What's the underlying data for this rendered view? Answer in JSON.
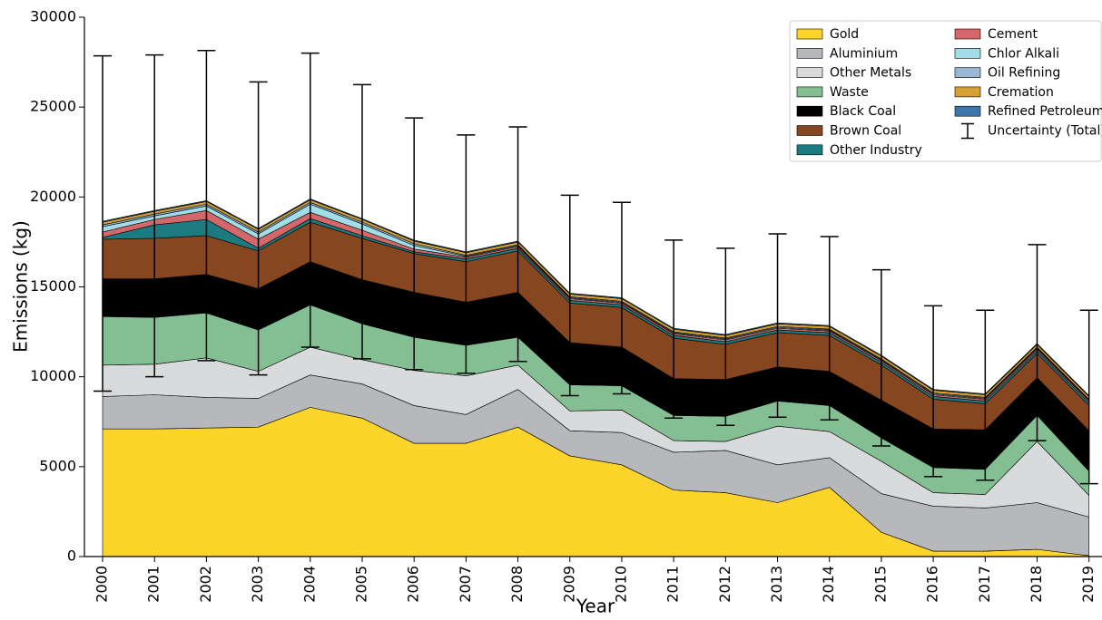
{
  "chart_data": {
    "type": "stacked_area",
    "x_label": "Year",
    "y_label": "Emissions (kg)",
    "x": [
      2000,
      2001,
      2002,
      2003,
      2004,
      2005,
      2006,
      2007,
      2008,
      2009,
      2010,
      2011,
      2012,
      2013,
      2014,
      2015,
      2016,
      2017,
      2018,
      2019
    ],
    "xlim": [
      1999.65,
      2019.25
    ],
    "xticks": [
      2000,
      2001,
      2002,
      2003,
      2004,
      2005,
      2006,
      2007,
      2008,
      2009,
      2010,
      2011,
      2012,
      2013,
      2014,
      2015,
      2016,
      2017,
      2018,
      2019
    ],
    "ylim": [
      0,
      30000
    ],
    "yticks": [
      0,
      5000,
      10000,
      15000,
      20000,
      25000,
      30000
    ],
    "legend": "upper right",
    "series": [
      {
        "name": "Gold",
        "color": "#fdd52a",
        "values": [
          7100,
          7100,
          7150,
          7200,
          8300,
          7700,
          6300,
          6300,
          7200,
          5600,
          5100,
          3700,
          3550,
          3000,
          3850,
          1350,
          300,
          300,
          400,
          50
        ]
      },
      {
        "name": "Aluminium",
        "color": "#b7b8bc",
        "values": [
          1800,
          1900,
          1700,
          1600,
          1800,
          1900,
          2100,
          1600,
          2100,
          1400,
          1800,
          2100,
          2350,
          2100,
          1650,
          2150,
          2500,
          2400,
          2600,
          2150
        ]
      },
      {
        "name": "Other Metals",
        "color": "#d9dadb",
        "values": [
          1750,
          1700,
          2200,
          1500,
          1550,
          1350,
          1950,
          2150,
          1350,
          1100,
          1250,
          650,
          500,
          2150,
          1450,
          1800,
          750,
          750,
          3400,
          1200
        ]
      },
      {
        "name": "Waste",
        "color": "#84bf93",
        "values": [
          2700,
          2600,
          2500,
          2300,
          2350,
          2000,
          1850,
          1700,
          1550,
          1450,
          1350,
          1400,
          1400,
          1400,
          1450,
          1300,
          1400,
          1400,
          1450,
          1350
        ]
      },
      {
        "name": "Black Coal",
        "color": "#000000",
        "values": [
          2100,
          2150,
          2150,
          2300,
          2400,
          2450,
          2500,
          2400,
          2500,
          2350,
          2150,
          2050,
          2050,
          1900,
          1900,
          2100,
          2150,
          2200,
          2100,
          2250
        ]
      },
      {
        "name": "Brown Coal",
        "color": "#86461f",
        "values": [
          2200,
          2250,
          2150,
          2100,
          2200,
          2300,
          2150,
          2250,
          2300,
          2200,
          2200,
          2250,
          1950,
          1900,
          2000,
          1950,
          1650,
          1450,
          1350,
          1400
        ]
      },
      {
        "name": "Other Industry",
        "color": "#1b7b80",
        "values": [
          100,
          750,
          900,
          150,
          200,
          150,
          100,
          150,
          150,
          150,
          150,
          150,
          150,
          150,
          150,
          150,
          150,
          150,
          150,
          150
        ]
      },
      {
        "name": "Cement",
        "color": "#d4676a",
        "values": [
          300,
          300,
          500,
          500,
          350,
          300,
          150,
          100,
          100,
          100,
          100,
          100,
          100,
          100,
          100,
          100,
          100,
          100,
          100,
          100
        ]
      },
      {
        "name": "Chlor Alkali",
        "color": "#a0dde6",
        "values": [
          300,
          200,
          250,
          300,
          450,
          350,
          200,
          50,
          50,
          50,
          50,
          50,
          50,
          50,
          50,
          50,
          50,
          50,
          50,
          50
        ]
      },
      {
        "name": "Oil Refining",
        "color": "#9ab7d6",
        "values": [
          100,
          100,
          100,
          100,
          100,
          100,
          100,
          50,
          50,
          50,
          50,
          50,
          50,
          50,
          50,
          50,
          50,
          50,
          50,
          50
        ]
      },
      {
        "name": "Cremation",
        "color": "#d5a036",
        "values": [
          150,
          150,
          150,
          150,
          150,
          150,
          150,
          150,
          150,
          150,
          150,
          150,
          150,
          150,
          150,
          150,
          150,
          150,
          150,
          150
        ]
      },
      {
        "name": "Refined Petroleum",
        "color": "#3c76ad",
        "values": [
          50,
          50,
          50,
          50,
          50,
          50,
          50,
          50,
          50,
          50,
          50,
          50,
          50,
          50,
          50,
          50,
          50,
          50,
          50,
          50
        ]
      }
    ],
    "uncertainty": {
      "name": "Uncertainty (Total)",
      "lower": [
        9200,
        10000,
        10900,
        10100,
        11650,
        11000,
        10400,
        10200,
        10850,
        8950,
        9050,
        7700,
        7300,
        7750,
        7600,
        6150,
        4450,
        4250,
        6450,
        4050
      ],
      "upper": [
        27850,
        27900,
        28150,
        26400,
        28000,
        26250,
        24400,
        23450,
        23900,
        20100,
        19700,
        17600,
        17150,
        17950,
        17800,
        15950,
        13950,
        13700,
        17350,
        13700
      ]
    }
  }
}
